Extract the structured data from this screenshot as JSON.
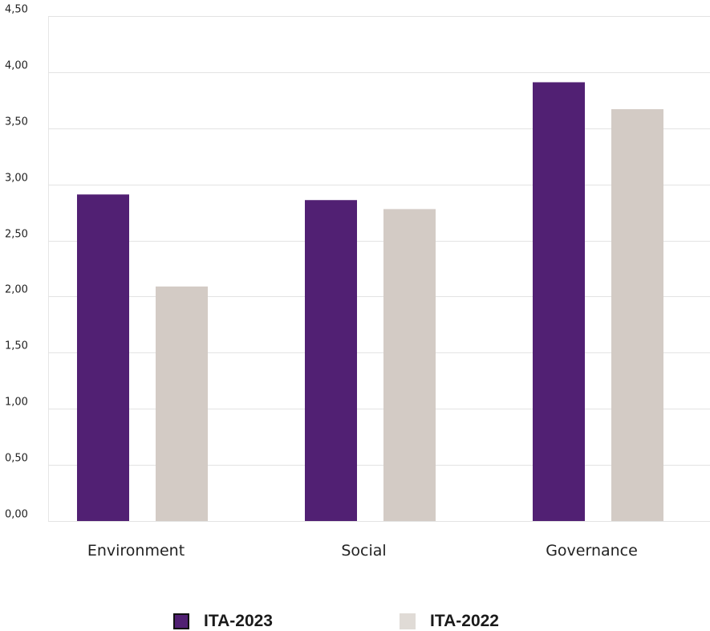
{
  "chart_data": {
    "type": "bar",
    "categories": [
      "Environment",
      "Social",
      "Governance"
    ],
    "series": [
      {
        "name": "ITA-2023",
        "color": "#512073",
        "values": [
          2.91,
          2.86,
          3.91
        ]
      },
      {
        "name": "ITA-2022",
        "color": "#d3cbc5",
        "values": [
          2.09,
          2.78,
          3.67
        ]
      }
    ],
    "yticks": [
      "0,00",
      "0,50",
      "1,00",
      "1,50",
      "2,00",
      "2,50",
      "3,00",
      "3,50",
      "4,00",
      "4,50"
    ],
    "ylim": [
      0,
      4.5
    ],
    "grid": true,
    "legend_position": "bottom"
  },
  "legend": {
    "items": [
      {
        "label": "ITA-2023",
        "color": "#512073"
      },
      {
        "label": "ITA-2022",
        "color": "#e0dbd6"
      }
    ]
  }
}
